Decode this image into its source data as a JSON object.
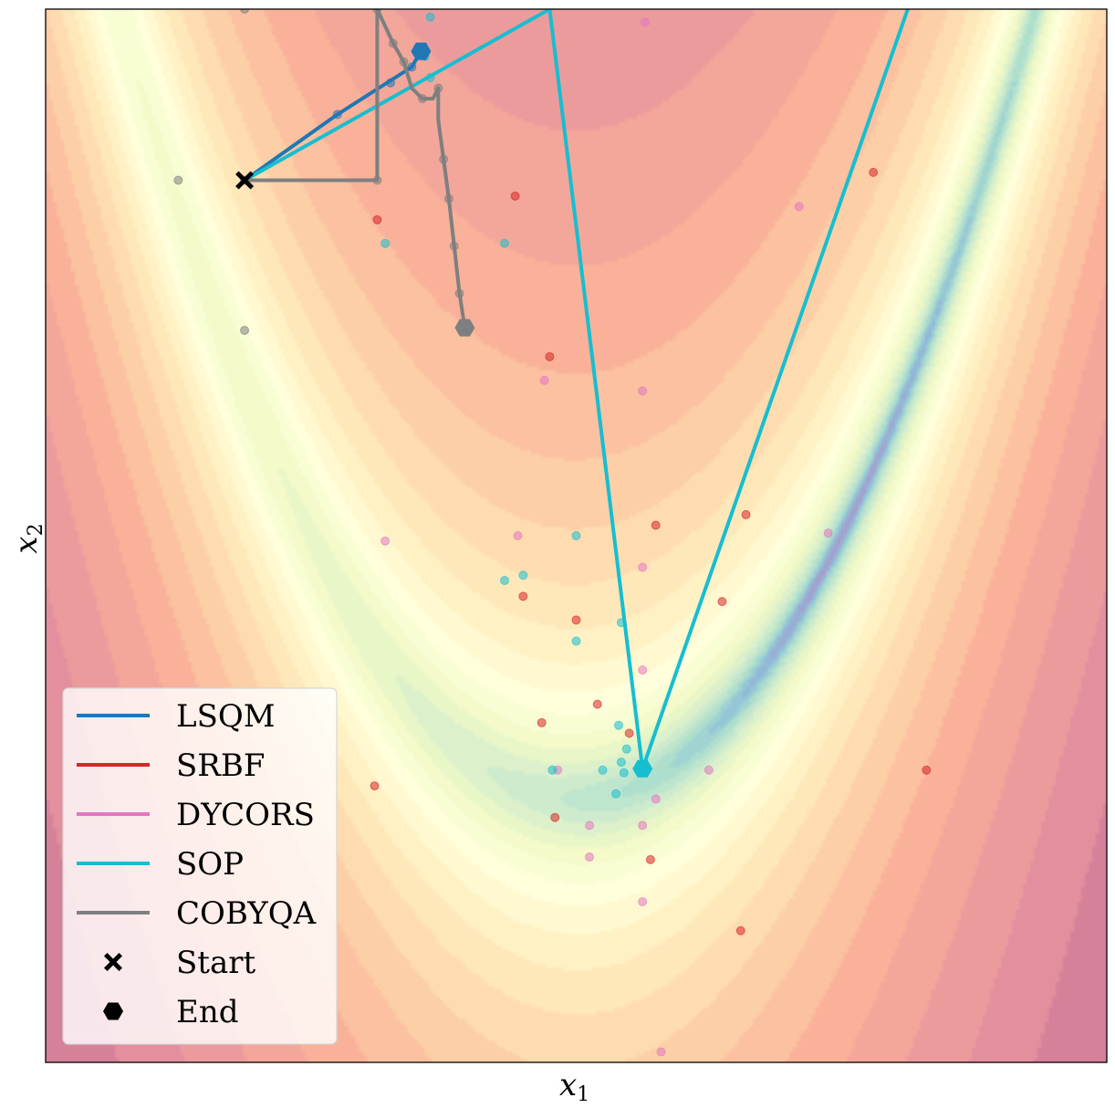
{
  "chart_data": {
    "type": "line",
    "title": "",
    "xlabel": "x",
    "xlabel_sub": "1",
    "ylabel": "x",
    "ylabel_sub": "2",
    "xlim": [
      -2,
      2
    ],
    "ylim": [
      -1,
      3
    ],
    "grid": false,
    "legend_position": "lower-left",
    "background": "Rosenbrock function contour (Spectral colormap, log scale)",
    "colors": {
      "LSQM": "#1f77b4",
      "SRBF": "#d62728",
      "DYCORS": "#e377c2",
      "SOP": "#17becf",
      "COBYQA": "#7f7f7f",
      "marker": "#000000"
    },
    "start": {
      "x": -1.25,
      "y": 2.35
    },
    "series": [
      {
        "name": "LSQM",
        "line": [
          [
            -1.25,
            2.35
          ],
          [
            -0.9,
            2.6
          ],
          [
            -0.62,
            2.78
          ],
          [
            -0.585,
            2.84
          ]
        ],
        "end": [
          -0.585,
          2.84
        ],
        "samples": [
          [
            -0.9,
            2.6
          ],
          [
            -0.7,
            2.72
          ],
          [
            -0.62,
            2.78
          ]
        ]
      },
      {
        "name": "SRBF",
        "line": [],
        "end": null,
        "samples": [
          [
            -0.75,
            2.2
          ],
          [
            -0.23,
            2.29
          ],
          [
            -0.1,
            1.68
          ],
          [
            -0.2,
            0.77
          ],
          [
            0.0,
            0.68
          ],
          [
            0.2,
            0.25
          ],
          [
            0.55,
            0.75
          ],
          [
            0.3,
            1.04
          ],
          [
            0.08,
            0.36
          ],
          [
            -0.76,
            0.05
          ],
          [
            -0.13,
            0.29
          ],
          [
            -0.08,
            -0.07
          ],
          [
            0.62,
            -0.5
          ],
          [
            0.28,
            -0.23
          ],
          [
            1.32,
            0.11
          ],
          [
            0.64,
            1.08
          ],
          [
            1.12,
            2.38
          ]
        ]
      },
      {
        "name": "DYCORS",
        "line": [],
        "end": null,
        "samples": [
          [
            0.26,
            2.95
          ],
          [
            -0.12,
            1.59
          ],
          [
            0.25,
            1.55
          ],
          [
            -0.72,
            0.98
          ],
          [
            -0.22,
            1.0
          ],
          [
            0.25,
            0.88
          ],
          [
            0.25,
            0.49
          ],
          [
            -0.07,
            0.11
          ],
          [
            0.5,
            0.11
          ],
          [
            0.3,
            0.0
          ],
          [
            0.05,
            -0.1
          ],
          [
            0.05,
            -0.22
          ],
          [
            0.25,
            -0.1
          ],
          [
            0.84,
            2.25
          ],
          [
            0.95,
            1.01
          ],
          [
            0.25,
            -0.39
          ],
          [
            0.32,
            -0.96
          ]
        ]
      },
      {
        "name": "SOP",
        "line": [
          [
            -1.25,
            2.35
          ],
          [
            -0.1,
            3.0
          ],
          [
            0.25,
            0.115
          ],
          [
            1.25,
            3.0
          ]
        ],
        "end": [
          0.25,
          0.115
        ],
        "samples": [
          [
            -0.55,
            2.97
          ],
          [
            -0.57,
            2.82
          ],
          [
            -0.55,
            2.74
          ],
          [
            -0.72,
            2.11
          ],
          [
            -0.27,
            2.11
          ],
          [
            -0.0,
            1.0
          ],
          [
            -0.27,
            0.83
          ],
          [
            -0.2,
            0.85
          ],
          [
            -0.0,
            0.6
          ],
          [
            0.17,
            0.67
          ],
          [
            0.16,
            0.28
          ],
          [
            0.19,
            0.19
          ],
          [
            0.17,
            0.14
          ],
          [
            0.1,
            0.11
          ],
          [
            0.18,
            0.1
          ],
          [
            -0.09,
            0.11
          ],
          [
            0.15,
            0.02
          ]
        ]
      },
      {
        "name": "COBYQA",
        "line": [
          [
            -1.25,
            2.35
          ],
          [
            -0.75,
            2.35
          ],
          [
            -0.75,
            3.0
          ],
          [
            -0.69,
            2.87
          ],
          [
            -0.65,
            2.8
          ],
          [
            -0.62,
            2.7
          ],
          [
            -0.58,
            2.66
          ],
          [
            -0.54,
            2.66
          ],
          [
            -0.52,
            2.7
          ],
          [
            -0.52,
            2.58
          ],
          [
            -0.5,
            2.43
          ],
          [
            -0.48,
            2.28
          ],
          [
            -0.46,
            2.1
          ],
          [
            -0.44,
            1.92
          ],
          [
            -0.42,
            1.79
          ]
        ],
        "end": [
          -0.42,
          1.79
        ],
        "samples": [
          [
            -1.25,
            2.35
          ],
          [
            -0.75,
            2.35
          ],
          [
            -0.75,
            3.0
          ],
          [
            -0.69,
            2.87
          ],
          [
            -0.65,
            2.8
          ],
          [
            -0.58,
            2.66
          ],
          [
            -0.52,
            2.7
          ],
          [
            -0.5,
            2.43
          ],
          [
            -0.48,
            2.28
          ],
          [
            -0.46,
            2.1
          ],
          [
            -0.44,
            1.92
          ],
          [
            -1.5,
            2.35
          ],
          [
            -1.25,
            1.78
          ],
          [
            -1.25,
            3.0
          ]
        ]
      }
    ],
    "legend": {
      "entries": [
        {
          "label": "LSQM",
          "kind": "line",
          "color": "#1f77b4"
        },
        {
          "label": "SRBF",
          "kind": "line",
          "color": "#d62728"
        },
        {
          "label": "DYCORS",
          "kind": "line",
          "color": "#e377c2"
        },
        {
          "label": "SOP",
          "kind": "line",
          "color": "#17becf"
        },
        {
          "label": "COBYQA",
          "kind": "line",
          "color": "#7f7f7f"
        },
        {
          "label": "Start",
          "kind": "x-marker",
          "color": "#000000"
        },
        {
          "label": "End",
          "kind": "hex-marker",
          "color": "#000000"
        }
      ]
    }
  }
}
